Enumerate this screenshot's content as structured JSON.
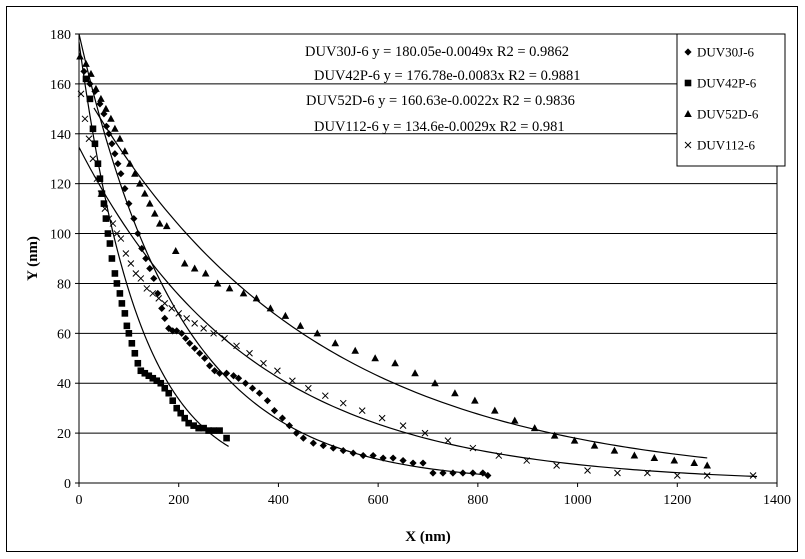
{
  "chart_data": {
    "type": "scatter",
    "xlabel": "X (nm)",
    "ylabel": "Y (nm)",
    "xlim": [
      0,
      1400
    ],
    "ylim": [
      0,
      180
    ],
    "x_ticks": [
      "0",
      "200",
      "400",
      "600",
      "800",
      "1000",
      "1200",
      "1400"
    ],
    "y_ticks": [
      "0",
      "20",
      "40",
      "60",
      "80",
      "100",
      "120",
      "140",
      "160",
      "180"
    ],
    "grid": "horizontal",
    "legend_position": "right",
    "equations": [
      "DUV30J-6 y = 180.05e-0.0049x R2 = 0.9862",
      "DUV42P-6 y = 176.78e-0.0083x R2 = 0.9881",
      "DUV52D-6 y = 160.63e-0.0022x R2 = 0.9836",
      "DUV112-6 y = 134.6e-0.0029x R2 = 0.981"
    ],
    "series": [
      {
        "name": "DUV30J-6",
        "marker": "diamond",
        "trendline": {
          "a": 180.05,
          "b": -0.0049,
          "x_range": [
            0,
            820
          ]
        },
        "points": [
          [
            10,
            165
          ],
          [
            22,
            160
          ],
          [
            32,
            157
          ],
          [
            42,
            152
          ],
          [
            50,
            148
          ],
          [
            55,
            143
          ],
          [
            60,
            140
          ],
          [
            66,
            136
          ],
          [
            72,
            132
          ],
          [
            78,
            128
          ],
          [
            84,
            124
          ],
          [
            92,
            118
          ],
          [
            100,
            112
          ],
          [
            110,
            106
          ],
          [
            118,
            100
          ],
          [
            126,
            94
          ],
          [
            134,
            90
          ],
          [
            142,
            86
          ],
          [
            150,
            82
          ],
          [
            158,
            76
          ],
          [
            166,
            70
          ],
          [
            172,
            66
          ],
          [
            180,
            62
          ],
          [
            188,
            61
          ],
          [
            196,
            61
          ],
          [
            206,
            60
          ],
          [
            214,
            58
          ],
          [
            222,
            56
          ],
          [
            232,
            54
          ],
          [
            242,
            52
          ],
          [
            252,
            50
          ],
          [
            262,
            47
          ],
          [
            272,
            45
          ],
          [
            282,
            44
          ],
          [
            296,
            44
          ],
          [
            310,
            43
          ],
          [
            320,
            42
          ],
          [
            334,
            40
          ],
          [
            348,
            38
          ],
          [
            362,
            36
          ],
          [
            378,
            33
          ],
          [
            392,
            29
          ],
          [
            408,
            26
          ],
          [
            422,
            23
          ],
          [
            436,
            20
          ],
          [
            450,
            18
          ],
          [
            470,
            16
          ],
          [
            490,
            15
          ],
          [
            510,
            14
          ],
          [
            530,
            13
          ],
          [
            550,
            12
          ],
          [
            570,
            11
          ],
          [
            590,
            11
          ],
          [
            610,
            10
          ],
          [
            630,
            10
          ],
          [
            650,
            9
          ],
          [
            670,
            8
          ],
          [
            690,
            8
          ],
          [
            710,
            4
          ],
          [
            730,
            4
          ],
          [
            750,
            4
          ],
          [
            770,
            4
          ],
          [
            790,
            4
          ],
          [
            810,
            4
          ],
          [
            820,
            3
          ]
        ]
      },
      {
        "name": "DUV42P-6",
        "marker": "square",
        "trendline": {
          "a": 176.78,
          "b": -0.0083,
          "x_range": [
            0,
            300
          ]
        },
        "points": [
          [
            14,
            162
          ],
          [
            22,
            154
          ],
          [
            28,
            142
          ],
          [
            32,
            136
          ],
          [
            38,
            128
          ],
          [
            42,
            122
          ],
          [
            46,
            116
          ],
          [
            50,
            112
          ],
          [
            54,
            106
          ],
          [
            58,
            100
          ],
          [
            62,
            96
          ],
          [
            66,
            90
          ],
          [
            72,
            84
          ],
          [
            76,
            80
          ],
          [
            82,
            76
          ],
          [
            86,
            72
          ],
          [
            92,
            68
          ],
          [
            96,
            63
          ],
          [
            100,
            60
          ],
          [
            106,
            56
          ],
          [
            112,
            52
          ],
          [
            118,
            48
          ],
          [
            124,
            45
          ],
          [
            132,
            44
          ],
          [
            140,
            43
          ],
          [
            148,
            42
          ],
          [
            156,
            41
          ],
          [
            164,
            40
          ],
          [
            172,
            38
          ],
          [
            180,
            36
          ],
          [
            188,
            33
          ],
          [
            196,
            30
          ],
          [
            204,
            28
          ],
          [
            212,
            26
          ],
          [
            220,
            24
          ],
          [
            230,
            23
          ],
          [
            240,
            22
          ],
          [
            250,
            22
          ],
          [
            260,
            21
          ],
          [
            270,
            21
          ],
          [
            282,
            21
          ],
          [
            296,
            18
          ]
        ]
      },
      {
        "name": "DUV52D-6",
        "marker": "triangle",
        "trendline": {
          "a": 160.63,
          "b": -0.0022,
          "x_range": [
            30,
            1260
          ]
        },
        "points": [
          [
            2,
            171
          ],
          [
            14,
            168
          ],
          [
            24,
            164
          ],
          [
            34,
            158
          ],
          [
            44,
            154
          ],
          [
            54,
            150
          ],
          [
            64,
            146
          ],
          [
            72,
            142
          ],
          [
            82,
            138
          ],
          [
            92,
            133
          ],
          [
            102,
            128
          ],
          [
            112,
            124
          ],
          [
            122,
            120
          ],
          [
            132,
            116
          ],
          [
            142,
            112
          ],
          [
            152,
            108
          ],
          [
            162,
            104
          ],
          [
            176,
            103
          ],
          [
            194,
            93
          ],
          [
            212,
            88
          ],
          [
            232,
            86
          ],
          [
            254,
            84
          ],
          [
            278,
            80
          ],
          [
            302,
            78
          ],
          [
            330,
            76
          ],
          [
            356,
            74
          ],
          [
            384,
            70
          ],
          [
            414,
            67
          ],
          [
            444,
            63
          ],
          [
            478,
            60
          ],
          [
            514,
            56
          ],
          [
            554,
            53
          ],
          [
            594,
            50
          ],
          [
            634,
            48
          ],
          [
            674,
            44
          ],
          [
            714,
            40
          ],
          [
            754,
            36
          ],
          [
            794,
            33
          ],
          [
            834,
            29
          ],
          [
            874,
            25
          ],
          [
            914,
            22
          ],
          [
            954,
            19
          ],
          [
            994,
            17
          ],
          [
            1034,
            15
          ],
          [
            1074,
            13
          ],
          [
            1114,
            11
          ],
          [
            1154,
            10
          ],
          [
            1194,
            9
          ],
          [
            1234,
            8
          ],
          [
            1260,
            7
          ]
        ]
      },
      {
        "name": "DUV112-6",
        "marker": "x",
        "trendline": {
          "a": 134.6,
          "b": -0.0029,
          "x_range": [
            0,
            1360
          ]
        },
        "points": [
          [
            4,
            156
          ],
          [
            12,
            146
          ],
          [
            20,
            138
          ],
          [
            28,
            130
          ],
          [
            36,
            122
          ],
          [
            44,
            116
          ],
          [
            52,
            110
          ],
          [
            60,
            106
          ],
          [
            68,
            104
          ],
          [
            76,
            100
          ],
          [
            84,
            98
          ],
          [
            94,
            92
          ],
          [
            104,
            88
          ],
          [
            114,
            84
          ],
          [
            124,
            82
          ],
          [
            136,
            78
          ],
          [
            148,
            76
          ],
          [
            160,
            74
          ],
          [
            172,
            72
          ],
          [
            186,
            70
          ],
          [
            200,
            68
          ],
          [
            216,
            66
          ],
          [
            232,
            64
          ],
          [
            250,
            62
          ],
          [
            270,
            60
          ],
          [
            292,
            58
          ],
          [
            316,
            55
          ],
          [
            342,
            52
          ],
          [
            370,
            48
          ],
          [
            398,
            45
          ],
          [
            428,
            41
          ],
          [
            460,
            38
          ],
          [
            494,
            35
          ],
          [
            530,
            32
          ],
          [
            568,
            29
          ],
          [
            608,
            26
          ],
          [
            650,
            23
          ],
          [
            694,
            20
          ],
          [
            740,
            17
          ],
          [
            790,
            14
          ],
          [
            842,
            11
          ],
          [
            898,
            9
          ],
          [
            958,
            7
          ],
          [
            1020,
            5
          ],
          [
            1080,
            4
          ],
          [
            1140,
            4
          ],
          [
            1200,
            3
          ],
          [
            1260,
            3
          ],
          [
            1352,
            3
          ]
        ]
      }
    ]
  }
}
